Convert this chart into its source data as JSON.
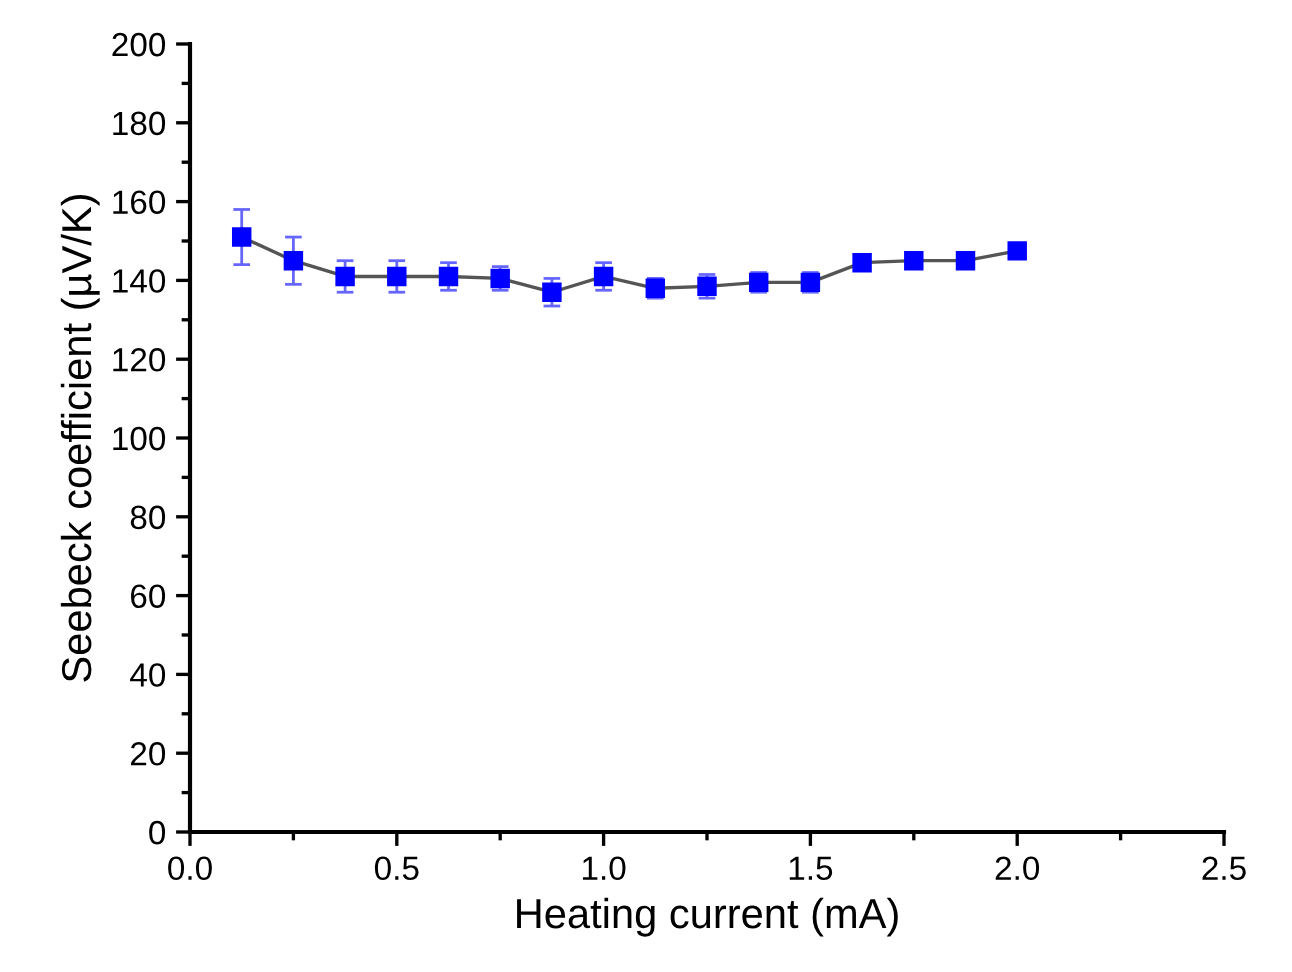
{
  "chart_data": {
    "type": "line",
    "xlabel": "Heating current (mA)",
    "ylabel": "Seebeck coefficient (µV/K)",
    "x": [
      0.125,
      0.25,
      0.375,
      0.5,
      0.625,
      0.75,
      0.875,
      1.0,
      1.125,
      1.25,
      1.375,
      1.5,
      1.625,
      1.75,
      1.875,
      2.0
    ],
    "series": [
      {
        "color": "#0000ff",
        "values": [
          151,
          145,
          141,
          141,
          141,
          140.5,
          137,
          141,
          138,
          138.5,
          139.5,
          139.5,
          144.5,
          145,
          145,
          147.5
        ],
        "errors": [
          7,
          6,
          4,
          4,
          3.5,
          3,
          3.5,
          3.5,
          2.5,
          3,
          2.5,
          2.5,
          2,
          2,
          1.5,
          1.5
        ]
      }
    ],
    "xlim": [
      0,
      2.5
    ],
    "xticks": [
      {
        "value": 0,
        "label": "0.0"
      },
      0.5,
      {
        "value": 1,
        "label": "1.0"
      },
      1.5,
      {
        "value": 2,
        "label": "2.0"
      },
      2.5
    ],
    "ylim": [
      0,
      200
    ],
    "yticks": [
      0,
      20,
      40,
      60,
      80,
      100,
      120,
      140,
      160,
      180,
      200
    ],
    "marker": "square",
    "line_style": "solid",
    "grid": false,
    "legend": false
  }
}
